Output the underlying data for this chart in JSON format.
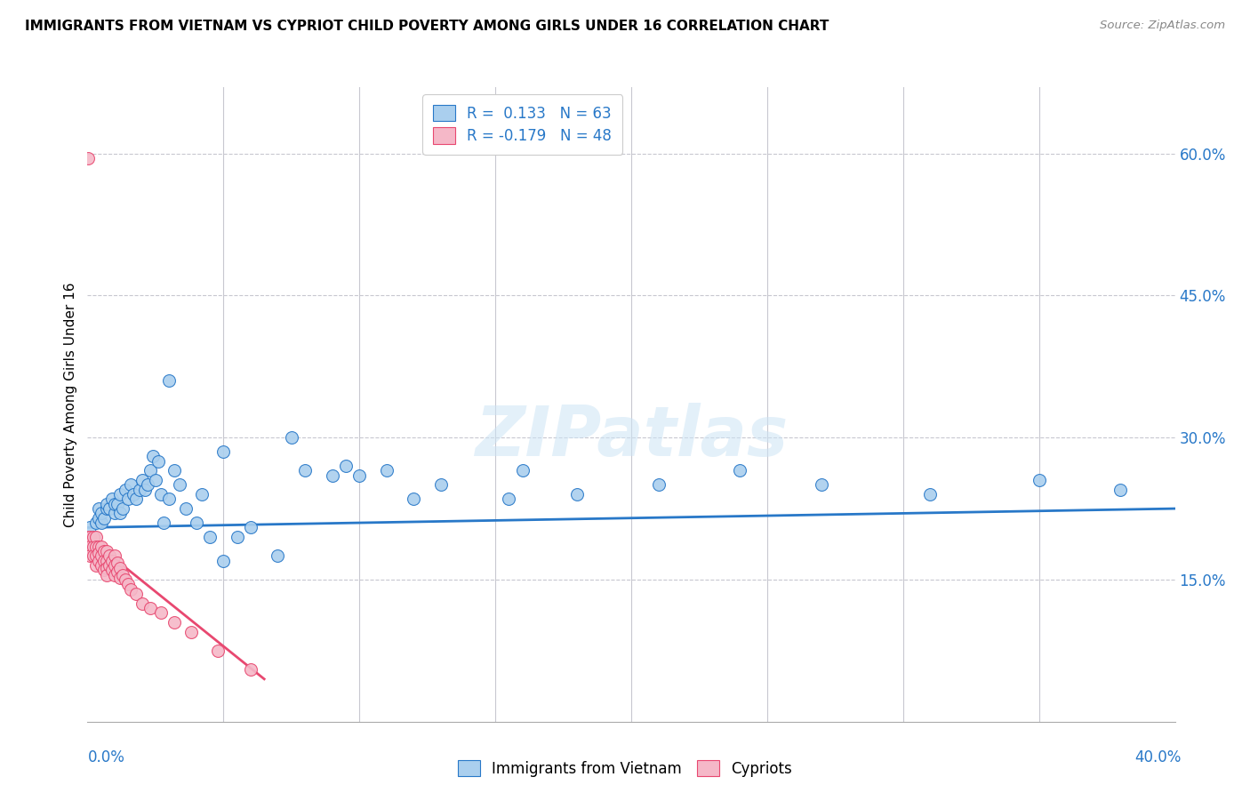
{
  "title": "IMMIGRANTS FROM VIETNAM VS CYPRIOT CHILD POVERTY AMONG GIRLS UNDER 16 CORRELATION CHART",
  "source": "Source: ZipAtlas.com",
  "ylabel": "Child Poverty Among Girls Under 16",
  "ylabel_right_ticks": [
    "15.0%",
    "30.0%",
    "45.0%",
    "60.0%"
  ],
  "ylabel_right_vals": [
    0.15,
    0.3,
    0.45,
    0.6
  ],
  "xlim": [
    0.0,
    0.4
  ],
  "ylim": [
    0.0,
    0.67
  ],
  "legend_r1": "R =  0.133   N = 63",
  "legend_r2": "R = -0.179   N = 48",
  "blue_color": "#aacfee",
  "pink_color": "#f5b8c8",
  "blue_line_color": "#2878c8",
  "pink_line_color": "#e84870",
  "watermark_text": "ZIPatlas",
  "blue_x": [
    0.001,
    0.002,
    0.003,
    0.004,
    0.004,
    0.005,
    0.005,
    0.006,
    0.007,
    0.007,
    0.008,
    0.009,
    0.01,
    0.01,
    0.011,
    0.012,
    0.012,
    0.013,
    0.014,
    0.015,
    0.016,
    0.017,
    0.018,
    0.019,
    0.02,
    0.021,
    0.022,
    0.023,
    0.024,
    0.025,
    0.026,
    0.027,
    0.028,
    0.03,
    0.032,
    0.034,
    0.036,
    0.04,
    0.042,
    0.045,
    0.05,
    0.055,
    0.06,
    0.07,
    0.08,
    0.09,
    0.1,
    0.11,
    0.13,
    0.155,
    0.18,
    0.21,
    0.24,
    0.27,
    0.31,
    0.35,
    0.38,
    0.03,
    0.05,
    0.075,
    0.095,
    0.12,
    0.16
  ],
  "blue_y": [
    0.205,
    0.195,
    0.21,
    0.215,
    0.225,
    0.21,
    0.22,
    0.215,
    0.225,
    0.23,
    0.225,
    0.235,
    0.22,
    0.23,
    0.23,
    0.24,
    0.22,
    0.225,
    0.245,
    0.235,
    0.25,
    0.24,
    0.235,
    0.245,
    0.255,
    0.245,
    0.25,
    0.265,
    0.28,
    0.255,
    0.275,
    0.24,
    0.21,
    0.235,
    0.265,
    0.25,
    0.225,
    0.21,
    0.24,
    0.195,
    0.17,
    0.195,
    0.205,
    0.175,
    0.265,
    0.26,
    0.26,
    0.265,
    0.25,
    0.235,
    0.24,
    0.25,
    0.265,
    0.25,
    0.24,
    0.255,
    0.245,
    0.36,
    0.285,
    0.3,
    0.27,
    0.235,
    0.265
  ],
  "pink_x": [
    0.0003,
    0.0005,
    0.001,
    0.001,
    0.001,
    0.002,
    0.002,
    0.002,
    0.003,
    0.003,
    0.003,
    0.003,
    0.004,
    0.004,
    0.004,
    0.005,
    0.005,
    0.005,
    0.006,
    0.006,
    0.006,
    0.007,
    0.007,
    0.007,
    0.007,
    0.008,
    0.008,
    0.009,
    0.009,
    0.01,
    0.01,
    0.01,
    0.011,
    0.011,
    0.012,
    0.012,
    0.013,
    0.014,
    0.015,
    0.016,
    0.018,
    0.02,
    0.023,
    0.027,
    0.032,
    0.038,
    0.048,
    0.06
  ],
  "pink_y": [
    0.595,
    0.195,
    0.195,
    0.185,
    0.175,
    0.195,
    0.185,
    0.175,
    0.195,
    0.185,
    0.175,
    0.165,
    0.185,
    0.178,
    0.17,
    0.185,
    0.175,
    0.165,
    0.18,
    0.17,
    0.16,
    0.18,
    0.17,
    0.162,
    0.155,
    0.175,
    0.165,
    0.17,
    0.16,
    0.175,
    0.165,
    0.155,
    0.168,
    0.158,
    0.162,
    0.152,
    0.155,
    0.15,
    0.145,
    0.14,
    0.135,
    0.125,
    0.12,
    0.115,
    0.105,
    0.095,
    0.075,
    0.055
  ],
  "blue_trend_x": [
    0.0,
    0.4
  ],
  "blue_trend_y_start": 0.205,
  "blue_trend_y_end": 0.225,
  "pink_trend_x": [
    0.0,
    0.065
  ],
  "pink_trend_y_start": 0.195,
  "pink_trend_y_end": 0.045
}
